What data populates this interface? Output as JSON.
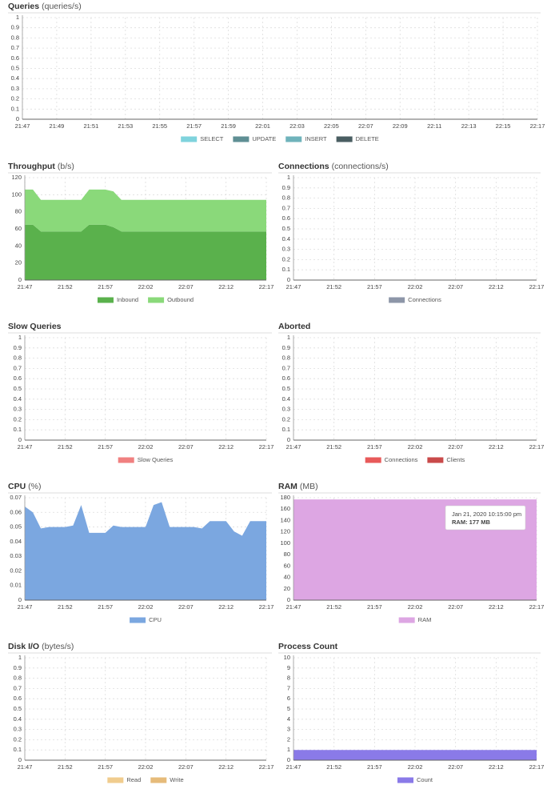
{
  "chart_data": [
    {
      "type": "area",
      "title": "Queries",
      "subtitle": "(queries/s)",
      "categories": [
        "21:47",
        null,
        "21:49",
        null,
        "21:51",
        null,
        "21:53",
        null,
        "21:55",
        null,
        "21:57",
        null,
        "21:59",
        null,
        "22:01",
        null,
        "22:03",
        null,
        "22:05",
        null,
        "22:07",
        null,
        "22:09",
        null,
        "22:11",
        null,
        "22:13",
        null,
        "22:15",
        null,
        "22:17"
      ],
      "series": [
        {
          "name": "SELECT",
          "color": "#7fd3dd"
        },
        {
          "name": "UPDATE",
          "color": "#5f8f94"
        },
        {
          "name": "INSERT",
          "color": "#6fb3bb"
        },
        {
          "name": "DELETE",
          "color": "#4a5e62"
        }
      ],
      "ylim": [
        0,
        1
      ],
      "yticks": [
        0,
        0.1,
        0.2,
        0.3,
        0.4,
        0.5,
        0.6,
        0.7,
        0.8,
        0.9,
        1
      ],
      "grid": true
    },
    {
      "type": "area",
      "title": "Throughput",
      "subtitle": "(b/s)",
      "categories": [
        "21:47",
        null,
        null,
        null,
        null,
        "21:52",
        null,
        null,
        null,
        null,
        "21:57",
        null,
        null,
        null,
        null,
        "22:02",
        null,
        null,
        null,
        null,
        "22:07",
        null,
        null,
        null,
        null,
        "22:12",
        null,
        null,
        null,
        null,
        "22:17"
      ],
      "series": [
        {
          "name": "Inbound",
          "color": "#5ab14c",
          "values": [
            65,
            65,
            57,
            57,
            57,
            57,
            57,
            57,
            65,
            65,
            65,
            62,
            57,
            57,
            57,
            57,
            57,
            57,
            57,
            57,
            57,
            57,
            57,
            57,
            57,
            57,
            57,
            57,
            57,
            57,
            57
          ]
        },
        {
          "name": "Outbound",
          "color": "#8ad97a",
          "values": [
            41,
            41,
            37,
            37,
            37,
            37,
            37,
            37,
            41,
            41,
            41,
            42,
            37,
            37,
            37,
            37,
            37,
            37,
            37,
            37,
            37,
            37,
            37,
            37,
            37,
            37,
            37,
            37,
            37,
            37,
            37
          ]
        }
      ],
      "ylim": [
        0,
        120
      ],
      "yticks": [
        0,
        20,
        40,
        60,
        80,
        100,
        120
      ],
      "grid": true
    },
    {
      "type": "area",
      "title": "Connections",
      "subtitle": "(connections/s)",
      "categories": [
        "21:47",
        null,
        null,
        null,
        null,
        "21:52",
        null,
        null,
        null,
        null,
        "21:57",
        null,
        null,
        null,
        null,
        "22:02",
        null,
        null,
        null,
        null,
        "22:07",
        null,
        null,
        null,
        null,
        "22:12",
        null,
        null,
        null,
        null,
        "22:17"
      ],
      "series": [
        {
          "name": "Connections",
          "color": "#8d96a8"
        }
      ],
      "ylim": [
        0,
        1
      ],
      "yticks": [
        0,
        0.1,
        0.2,
        0.3,
        0.4,
        0.5,
        0.6,
        0.7,
        0.8,
        0.9,
        1
      ],
      "grid": true
    },
    {
      "type": "area",
      "title": "Slow Queries",
      "categories": [
        "21:47",
        null,
        null,
        null,
        null,
        "21:52",
        null,
        null,
        null,
        null,
        "21:57",
        null,
        null,
        null,
        null,
        "22:02",
        null,
        null,
        null,
        null,
        "22:07",
        null,
        null,
        null,
        null,
        "22:12",
        null,
        null,
        null,
        null,
        "22:17"
      ],
      "series": [
        {
          "name": "Slow Queries",
          "color": "#f08080"
        }
      ],
      "ylim": [
        0,
        1
      ],
      "yticks": [
        0,
        0.1,
        0.2,
        0.3,
        0.4,
        0.5,
        0.6,
        0.7,
        0.8,
        0.9,
        1
      ],
      "grid": true
    },
    {
      "type": "area",
      "title": "Aborted",
      "categories": [
        "21:47",
        null,
        null,
        null,
        null,
        "21:52",
        null,
        null,
        null,
        null,
        "21:57",
        null,
        null,
        null,
        null,
        "22:02",
        null,
        null,
        null,
        null,
        "22:07",
        null,
        null,
        null,
        null,
        "22:12",
        null,
        null,
        null,
        null,
        "22:17"
      ],
      "series": [
        {
          "name": "Connections",
          "color": "#e85a5a"
        },
        {
          "name": "Clients",
          "color": "#c94a4a"
        }
      ],
      "ylim": [
        0,
        1
      ],
      "yticks": [
        0,
        0.1,
        0.2,
        0.3,
        0.4,
        0.5,
        0.6,
        0.7,
        0.8,
        0.9,
        1
      ],
      "grid": true
    },
    {
      "type": "area",
      "title": "CPU",
      "subtitle": "(%)",
      "categories": [
        "21:47",
        null,
        null,
        null,
        null,
        "21:52",
        null,
        null,
        null,
        null,
        "21:57",
        null,
        null,
        null,
        null,
        "22:02",
        null,
        null,
        null,
        null,
        "22:07",
        null,
        null,
        null,
        null,
        "22:12",
        null,
        null,
        null,
        null,
        "22:17"
      ],
      "series": [
        {
          "name": "CPU",
          "color": "#7ba7e0",
          "values": [
            0.064,
            0.06,
            0.049,
            0.05,
            0.05,
            0.05,
            0.051,
            0.065,
            0.046,
            0.046,
            0.046,
            0.051,
            0.05,
            0.05,
            0.05,
            0.05,
            0.065,
            0.067,
            0.05,
            0.05,
            0.05,
            0.05,
            0.049,
            0.054,
            0.054,
            0.054,
            0.047,
            0.044,
            0.054,
            0.054,
            0.054
          ]
        }
      ],
      "ylim": [
        0,
        0.07
      ],
      "yticks": [
        0,
        0.01,
        0.02,
        0.03,
        0.04,
        0.05,
        0.06,
        0.07
      ],
      "grid": true
    },
    {
      "type": "area",
      "title": "RAM",
      "subtitle": "(MB)",
      "categories": [
        "21:47",
        null,
        null,
        null,
        null,
        "21:52",
        null,
        null,
        null,
        null,
        "21:57",
        null,
        null,
        null,
        null,
        "22:02",
        null,
        null,
        null,
        null,
        "22:07",
        null,
        null,
        null,
        null,
        "22:12",
        null,
        null,
        null,
        null,
        "22:17"
      ],
      "series": [
        {
          "name": "RAM",
          "color": "#dda6e3",
          "values": [
            177,
            177,
            177,
            177,
            177,
            177,
            177,
            177,
            177,
            177,
            177,
            177,
            177,
            177,
            177,
            177,
            177,
            177,
            177,
            177,
            177,
            177,
            177,
            177,
            177,
            177,
            177,
            177,
            177,
            177,
            177
          ]
        }
      ],
      "ylim": [
        0,
        180
      ],
      "yticks": [
        0,
        20,
        40,
        60,
        80,
        100,
        120,
        140,
        160,
        180
      ],
      "grid": true,
      "tooltip": {
        "title": "Jan 21, 2020 10:15:00 pm",
        "text": "RAM: 177 MB"
      }
    },
    {
      "type": "area",
      "title": "Disk I/O",
      "subtitle": "(bytes/s)",
      "categories": [
        "21:47",
        null,
        null,
        null,
        null,
        "21:52",
        null,
        null,
        null,
        null,
        "21:57",
        null,
        null,
        null,
        null,
        "22:02",
        null,
        null,
        null,
        null,
        "22:07",
        null,
        null,
        null,
        null,
        "22:12",
        null,
        null,
        null,
        null,
        "22:17"
      ],
      "series": [
        {
          "name": "Read",
          "color": "#f0cc8e"
        },
        {
          "name": "Write",
          "color": "#e6bb7a"
        }
      ],
      "ylim": [
        0,
        1
      ],
      "yticks": [
        0,
        0.1,
        0.2,
        0.3,
        0.4,
        0.5,
        0.6,
        0.7,
        0.8,
        0.9,
        1
      ],
      "grid": true
    },
    {
      "type": "area",
      "title": "Process Count",
      "categories": [
        "21:47",
        null,
        null,
        null,
        null,
        "21:52",
        null,
        null,
        null,
        null,
        "21:57",
        null,
        null,
        null,
        null,
        "22:02",
        null,
        null,
        null,
        null,
        "22:07",
        null,
        null,
        null,
        null,
        "22:12",
        null,
        null,
        null,
        null,
        "22:17"
      ],
      "series": [
        {
          "name": "Count",
          "color": "#8a7ae8",
          "values": [
            1,
            1,
            1,
            1,
            1,
            1,
            1,
            1,
            1,
            1,
            1,
            1,
            1,
            1,
            1,
            1,
            1,
            1,
            1,
            1,
            1,
            1,
            1,
            1,
            1,
            1,
            1,
            1,
            1,
            1,
            1
          ]
        }
      ],
      "ylim": [
        0,
        10
      ],
      "yticks": [
        0,
        1,
        2,
        3,
        4,
        5,
        6,
        7,
        8,
        9,
        10
      ],
      "grid": true
    }
  ]
}
